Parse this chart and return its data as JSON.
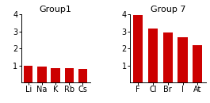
{
  "group1": {
    "title": "Group1",
    "labels": [
      "Li",
      "Na",
      "K",
      "Rb",
      "Cs"
    ],
    "values": [
      1.0,
      0.93,
      0.82,
      0.82,
      0.79
    ],
    "ylim": [
      0,
      4
    ],
    "yticks": [
      1,
      2,
      3,
      4
    ]
  },
  "group7": {
    "title": "Group 7",
    "labels": [
      "F",
      "Cl",
      "Br",
      "I",
      "At"
    ],
    "values": [
      3.98,
      3.16,
      2.96,
      2.66,
      2.2
    ],
    "ylim": [
      0,
      4
    ],
    "yticks": [
      1,
      2,
      3,
      4
    ]
  },
  "bar_color": "#cc0000",
  "bg_color": "#ffffff",
  "title_fontsize": 8,
  "tick_fontsize": 7
}
